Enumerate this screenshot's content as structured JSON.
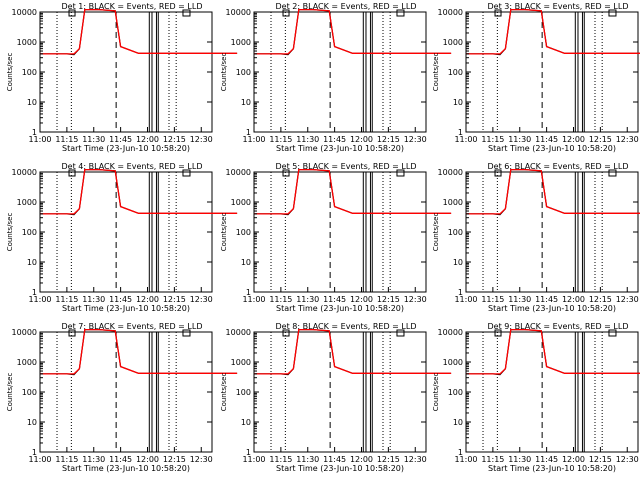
{
  "chart_data": [
    {
      "type": "line",
      "title": "Det 1: BLACK = Events, RED = LLD",
      "xlabel": "Start Time (23-Jun-10 10:58:20)",
      "ylabel": "Counts/sec",
      "y_scale": "log",
      "ylim": [
        1,
        10000
      ],
      "x_ticks": [
        "11:00",
        "11:15",
        "11:30",
        "11:45",
        "12:00",
        "12:15",
        "12:30"
      ],
      "y_ticks": [
        "1",
        "10",
        "100",
        "1000",
        "10000"
      ],
      "legend": "none",
      "series": [
        {
          "color": "#000000",
          "x": [
            11.0,
            11.15,
            11.19,
            11.22,
            11.25,
            11.33,
            11.42,
            11.45,
            11.55,
            11.6,
            11.75,
            11.88,
            12.05,
            12.22,
            12.3,
            12.42,
            12.5
          ],
          "y": [
            400,
            400,
            380,
            600,
            12000,
            12000,
            11000,
            700,
            420,
            420,
            420,
            420,
            420,
            420,
            420,
            420,
            420
          ]
        },
        {
          "color": "#ff0000",
          "x": [
            11.0,
            11.15,
            11.19,
            11.22,
            11.25,
            11.33,
            11.42,
            11.45,
            11.55,
            11.6,
            11.75,
            11.88,
            12.05,
            12.22,
            12.3,
            12.42,
            12.5
          ],
          "y": [
            400,
            400,
            400,
            600,
            12000,
            12000,
            11000,
            700,
            420,
            420,
            420,
            420,
            420,
            420,
            420,
            420,
            420
          ]
        }
      ]
    },
    {
      "type": "line",
      "title": "Det 2: BLACK = Events, RED = LLD",
      "xlabel": "Start Time (23-Jun-10 10:58:20)",
      "ylabel": "Counts/sec",
      "y_scale": "log",
      "ylim": [
        1,
        10000
      ],
      "x_ticks": [
        "11:00",
        "11:15",
        "11:30",
        "11:45",
        "12:00",
        "12:15",
        "12:30"
      ],
      "y_ticks": [
        "1",
        "10",
        "100",
        "1000",
        "10000"
      ],
      "legend": "none",
      "series": [
        {
          "color": "#000000",
          "x": [
            11.0,
            11.15,
            11.19,
            11.22,
            11.25,
            11.33,
            11.42,
            11.45,
            11.55,
            11.6,
            11.75,
            11.88,
            12.05,
            12.22,
            12.3,
            12.42,
            12.5
          ],
          "y": [
            400,
            400,
            380,
            600,
            12000,
            12000,
            11000,
            700,
            420,
            420,
            420,
            420,
            420,
            420,
            420,
            420,
            420
          ]
        },
        {
          "color": "#ff0000",
          "x": [
            11.0,
            11.15,
            11.19,
            11.22,
            11.25,
            11.33,
            11.42,
            11.45,
            11.55,
            11.6,
            11.75,
            11.88,
            12.05,
            12.22,
            12.3,
            12.42,
            12.5
          ],
          "y": [
            400,
            400,
            400,
            600,
            12000,
            12000,
            11000,
            700,
            420,
            420,
            420,
            420,
            420,
            420,
            420,
            420,
            420
          ]
        }
      ]
    },
    {
      "type": "line",
      "title": "Det 3: BLACK = Events, RED = LLD",
      "xlabel": "Start Time (23-Jun-10 10:58:20)",
      "ylabel": "Counts/sec",
      "y_scale": "log",
      "ylim": [
        1,
        10000
      ],
      "x_ticks": [
        "11:00",
        "11:15",
        "11:30",
        "11:45",
        "12:00",
        "12:15",
        "12:30"
      ],
      "y_ticks": [
        "1",
        "10",
        "100",
        "1000",
        "10000"
      ],
      "legend": "none",
      "series": [
        {
          "color": "#000000",
          "x": [
            11.0,
            11.15,
            11.19,
            11.22,
            11.25,
            11.33,
            11.42,
            11.45,
            11.55,
            11.6,
            11.75,
            11.88,
            12.05,
            12.22,
            12.3,
            12.42,
            12.5
          ],
          "y": [
            400,
            400,
            380,
            600,
            12000,
            12000,
            11000,
            700,
            420,
            420,
            420,
            420,
            420,
            420,
            420,
            420,
            420
          ]
        },
        {
          "color": "#ff0000",
          "x": [
            11.0,
            11.15,
            11.19,
            11.22,
            11.25,
            11.33,
            11.42,
            11.45,
            11.55,
            11.6,
            11.75,
            11.88,
            12.05,
            12.22,
            12.3,
            12.42,
            12.5
          ],
          "y": [
            400,
            400,
            400,
            600,
            12000,
            12000,
            11000,
            700,
            420,
            420,
            420,
            420,
            420,
            420,
            420,
            420,
            420
          ]
        }
      ]
    },
    {
      "type": "line",
      "title": "Det 4: BLACK = Events, RED = LLD",
      "xlabel": "Start Time (23-Jun-10 10:58:20)",
      "ylabel": "Counts/sec",
      "y_scale": "log",
      "ylim": [
        1,
        10000
      ],
      "x_ticks": [
        "11:00",
        "11:15",
        "11:30",
        "11:45",
        "12:00",
        "12:15",
        "12:30"
      ],
      "y_ticks": [
        "1",
        "10",
        "100",
        "1000",
        "10000"
      ],
      "legend": "none",
      "series": [
        {
          "color": "#000000",
          "x": [
            11.0,
            11.15,
            11.19,
            11.22,
            11.25,
            11.33,
            11.42,
            11.45,
            11.55,
            11.6,
            11.75,
            11.88,
            12.05,
            12.22,
            12.3,
            12.42,
            12.5
          ],
          "y": [
            400,
            400,
            380,
            600,
            12000,
            12000,
            11000,
            700,
            420,
            420,
            420,
            420,
            420,
            420,
            420,
            420,
            420
          ]
        },
        {
          "color": "#ff0000",
          "x": [
            11.0,
            11.15,
            11.19,
            11.22,
            11.25,
            11.33,
            11.42,
            11.45,
            11.55,
            11.6,
            11.75,
            11.88,
            12.05,
            12.22,
            12.3,
            12.42,
            12.5
          ],
          "y": [
            400,
            400,
            400,
            600,
            12000,
            12000,
            11000,
            700,
            420,
            420,
            420,
            420,
            420,
            420,
            420,
            420,
            420
          ]
        }
      ]
    },
    {
      "type": "line",
      "title": "Det 5: BLACK = Events, RED = LLD",
      "xlabel": "Start Time (23-Jun-10 10:58:20)",
      "ylabel": "Counts/sec",
      "y_scale": "log",
      "ylim": [
        1,
        10000
      ],
      "x_ticks": [
        "11:00",
        "11:15",
        "11:30",
        "11:45",
        "12:00",
        "12:15",
        "12:30"
      ],
      "y_ticks": [
        "1",
        "10",
        "100",
        "1000",
        "10000"
      ],
      "legend": "none",
      "series": [
        {
          "color": "#000000",
          "x": [
            11.0,
            11.15,
            11.19,
            11.22,
            11.25,
            11.33,
            11.42,
            11.45,
            11.55,
            11.6,
            11.75,
            11.88,
            12.05,
            12.22,
            12.3,
            12.42,
            12.5
          ],
          "y": [
            400,
            400,
            380,
            600,
            12000,
            12000,
            11000,
            700,
            420,
            420,
            420,
            420,
            420,
            420,
            420,
            420,
            420
          ]
        },
        {
          "color": "#ff0000",
          "x": [
            11.0,
            11.15,
            11.19,
            11.22,
            11.25,
            11.33,
            11.42,
            11.45,
            11.55,
            11.6,
            11.75,
            11.88,
            12.05,
            12.22,
            12.3,
            12.42,
            12.5
          ],
          "y": [
            400,
            400,
            400,
            600,
            12000,
            12000,
            11000,
            700,
            420,
            420,
            420,
            420,
            420,
            420,
            420,
            420,
            420
          ]
        }
      ]
    },
    {
      "type": "line",
      "title": "Det 6: BLACK = Events, RED = LLD",
      "xlabel": "Start Time (23-Jun-10 10:58:20)",
      "ylabel": "Counts/sec",
      "y_scale": "log",
      "ylim": [
        1,
        10000
      ],
      "x_ticks": [
        "11:00",
        "11:15",
        "11:30",
        "11:45",
        "12:00",
        "12:15",
        "12:30"
      ],
      "y_ticks": [
        "1",
        "10",
        "100",
        "1000",
        "10000"
      ],
      "legend": "none",
      "series": [
        {
          "color": "#000000",
          "x": [
            11.0,
            11.15,
            11.19,
            11.22,
            11.25,
            11.33,
            11.42,
            11.45,
            11.55,
            11.6,
            11.75,
            11.88,
            12.05,
            12.22,
            12.3,
            12.42,
            12.5
          ],
          "y": [
            400,
            400,
            380,
            600,
            12000,
            12000,
            11000,
            700,
            420,
            420,
            420,
            420,
            420,
            420,
            420,
            420,
            420
          ]
        },
        {
          "color": "#ff0000",
          "x": [
            11.0,
            11.15,
            11.19,
            11.22,
            11.25,
            11.33,
            11.42,
            11.45,
            11.55,
            11.6,
            11.75,
            11.88,
            12.05,
            12.22,
            12.3,
            12.42,
            12.5
          ],
          "y": [
            400,
            400,
            400,
            600,
            12000,
            12000,
            11000,
            700,
            420,
            420,
            420,
            420,
            420,
            420,
            420,
            420,
            420
          ]
        }
      ]
    },
    {
      "type": "line",
      "title": "Det 7: BLACK = Events, RED = LLD",
      "xlabel": "Start Time (23-Jun-10 10:58:20)",
      "ylabel": "Counts/sec",
      "y_scale": "log",
      "ylim": [
        1,
        10000
      ],
      "x_ticks": [
        "11:00",
        "11:15",
        "11:30",
        "11:45",
        "12:00",
        "12:15",
        "12:30"
      ],
      "y_ticks": [
        "1",
        "10",
        "100",
        "1000",
        "10000"
      ],
      "legend": "none",
      "series": [
        {
          "color": "#000000",
          "x": [
            11.0,
            11.15,
            11.19,
            11.22,
            11.25,
            11.33,
            11.42,
            11.45,
            11.55,
            11.6,
            11.75,
            11.88,
            12.05,
            12.22,
            12.3,
            12.42,
            12.5
          ],
          "y": [
            400,
            400,
            380,
            600,
            12000,
            12000,
            11000,
            700,
            420,
            420,
            420,
            420,
            420,
            420,
            420,
            420,
            420
          ]
        },
        {
          "color": "#ff0000",
          "x": [
            11.0,
            11.15,
            11.19,
            11.22,
            11.25,
            11.33,
            11.42,
            11.45,
            11.55,
            11.6,
            11.75,
            11.88,
            12.05,
            12.22,
            12.3,
            12.42,
            12.5
          ],
          "y": [
            400,
            400,
            400,
            600,
            12000,
            12000,
            11000,
            700,
            420,
            420,
            420,
            420,
            420,
            420,
            420,
            420,
            420
          ]
        }
      ]
    },
    {
      "type": "line",
      "title": "Det 8: BLACK = Events, RED = LLD",
      "xlabel": "Start Time (23-Jun-10 10:58:20)",
      "ylabel": "Counts/sec",
      "y_scale": "log",
      "ylim": [
        1,
        10000
      ],
      "x_ticks": [
        "11:00",
        "11:15",
        "11:30",
        "11:45",
        "12:00",
        "12:15",
        "12:30"
      ],
      "y_ticks": [
        "1",
        "10",
        "100",
        "1000",
        "10000"
      ],
      "legend": "none",
      "series": [
        {
          "color": "#000000",
          "x": [
            11.0,
            11.15,
            11.19,
            11.22,
            11.25,
            11.33,
            11.42,
            11.45,
            11.55,
            11.6,
            11.75,
            11.88,
            12.05,
            12.22,
            12.3,
            12.42,
            12.5
          ],
          "y": [
            400,
            400,
            380,
            600,
            12000,
            12000,
            11000,
            700,
            420,
            420,
            420,
            420,
            420,
            420,
            420,
            420,
            420
          ]
        },
        {
          "color": "#ff0000",
          "x": [
            11.0,
            11.15,
            11.19,
            11.22,
            11.25,
            11.33,
            11.42,
            11.45,
            11.55,
            11.6,
            11.75,
            11.88,
            12.05,
            12.22,
            12.3,
            12.42,
            12.5
          ],
          "y": [
            400,
            400,
            400,
            600,
            12000,
            12000,
            11000,
            700,
            420,
            420,
            420,
            420,
            420,
            420,
            420,
            420,
            420
          ]
        }
      ]
    },
    {
      "type": "line",
      "title": "Det 9: BLACK = Events, RED = LLD",
      "xlabel": "Start Time (23-Jun-10 10:58:20)",
      "ylabel": "Counts/sec",
      "y_scale": "log",
      "ylim": [
        1,
        10000
      ],
      "x_ticks": [
        "11:00",
        "11:15",
        "11:30",
        "11:45",
        "12:00",
        "12:15",
        "12:30"
      ],
      "y_ticks": [
        "1",
        "10",
        "100",
        "1000",
        "10000"
      ],
      "legend": "none",
      "series": [
        {
          "color": "#000000",
          "x": [
            11.0,
            11.15,
            11.19,
            11.22,
            11.25,
            11.33,
            11.42,
            11.45,
            11.55,
            11.6,
            11.75,
            11.88,
            12.05,
            12.22,
            12.3,
            12.42,
            12.5
          ],
          "y": [
            400,
            400,
            380,
            600,
            12000,
            12000,
            11000,
            700,
            420,
            420,
            420,
            420,
            420,
            420,
            420,
            420,
            420
          ]
        },
        {
          "color": "#ff0000",
          "x": [
            11.0,
            11.15,
            11.19,
            11.22,
            11.25,
            11.33,
            11.42,
            11.45,
            11.55,
            11.6,
            11.75,
            11.88,
            12.05,
            12.22,
            12.3,
            12.42,
            12.5
          ],
          "y": [
            400,
            400,
            400,
            600,
            12000,
            12000,
            11000,
            700,
            420,
            420,
            420,
            420,
            420,
            420,
            420,
            420,
            420
          ]
        }
      ]
    }
  ]
}
